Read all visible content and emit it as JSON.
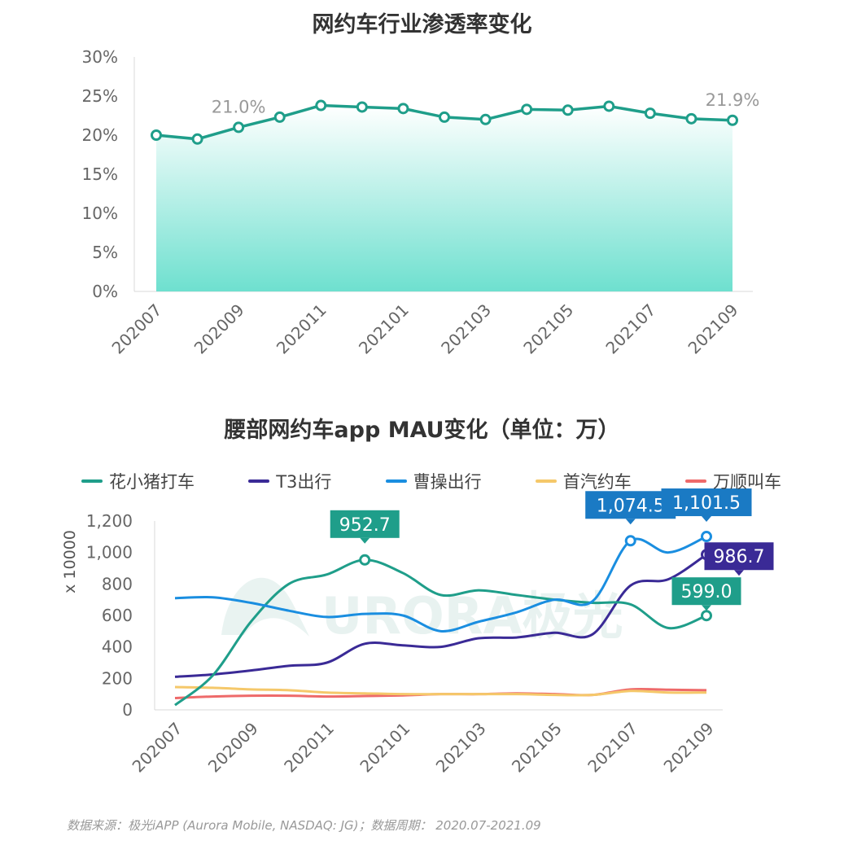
{
  "chart_data": [
    {
      "type": "area",
      "title": "网约车行业渗透率变化",
      "y_ticks": [
        "30%",
        "25%",
        "20%",
        "15%",
        "10%",
        "5%",
        "0%"
      ],
      "ylim": [
        0,
        30
      ],
      "x": [
        "202007",
        "202008",
        "202009",
        "202010",
        "202011",
        "202012",
        "202101",
        "202102",
        "202103",
        "202104",
        "202105",
        "202106",
        "202107",
        "202108",
        "202109"
      ],
      "x_tick_labels": [
        "202007",
        "202009",
        "202011",
        "202101",
        "202103",
        "202105",
        "202107",
        "202109"
      ],
      "series": [
        {
          "name": "",
          "values": [
            20.0,
            19.5,
            21.0,
            22.3,
            23.8,
            23.6,
            23.4,
            22.3,
            22.0,
            23.3,
            23.2,
            23.7,
            22.8,
            22.1,
            21.9
          ]
        }
      ],
      "annotations": [
        {
          "text": "21.0%",
          "x": "202009"
        },
        {
          "text": "21.9%",
          "x": "202109"
        }
      ],
      "colors": {
        "line": "#1f9e8a",
        "fill_top": "#ffffff",
        "fill_bottom": "#6ee0cf"
      }
    },
    {
      "type": "line",
      "title": "腰部网约车app MAU变化（单位：万）",
      "ylabel": "x 10000",
      "y_ticks": [
        "1,200",
        "1,000",
        "800",
        "600",
        "400",
        "200",
        "0"
      ],
      "ylim": [
        0,
        1200
      ],
      "x": [
        "202007",
        "202008",
        "202009",
        "202010",
        "202011",
        "202012",
        "202101",
        "202102",
        "202103",
        "202104",
        "202105",
        "202106",
        "202107",
        "202108",
        "202109"
      ],
      "x_tick_labels": [
        "202007",
        "202009",
        "202011",
        "202101",
        "202103",
        "202105",
        "202107",
        "202109"
      ],
      "series": [
        {
          "name": "花小猪打车",
          "color": "#1f9e8a",
          "values": [
            30,
            220,
            560,
            800,
            860,
            952.7,
            870,
            730,
            760,
            730,
            700,
            680,
            670,
            520,
            599.0
          ]
        },
        {
          "name": "T3出行",
          "color": "#3a2a96",
          "values": [
            210,
            225,
            250,
            280,
            300,
            420,
            410,
            400,
            455,
            460,
            490,
            480,
            790,
            830,
            986.7
          ]
        },
        {
          "name": "曹操出行",
          "color": "#1a8ee0",
          "values": [
            710,
            715,
            680,
            630,
            590,
            610,
            600,
            500,
            560,
            620,
            700,
            690,
            1074.5,
            1000,
            1101.5
          ]
        },
        {
          "name": "首汽约车",
          "color": "#f5c86a",
          "values": [
            145,
            140,
            130,
            125,
            110,
            105,
            100,
            100,
            100,
            100,
            95,
            95,
            120,
            110,
            110
          ]
        },
        {
          "name": "万顺叫车",
          "color": "#ee6a6a",
          "values": [
            75,
            85,
            90,
            90,
            85,
            88,
            92,
            100,
            100,
            105,
            100,
            95,
            130,
            128,
            125
          ]
        }
      ],
      "data_labels": [
        {
          "text": "952.7",
          "series": 0,
          "x": "202012",
          "color": "#1f9e8a"
        },
        {
          "text": "1,074.5",
          "series": 2,
          "x": "202107",
          "color": "#1a7ac4"
        },
        {
          "text": "1,101.5",
          "series": 2,
          "x": "202109",
          "color": "#1a7ac4"
        },
        {
          "text": "986.7",
          "series": 1,
          "x": "202109",
          "color": "#3a2a96"
        },
        {
          "text": "599.0",
          "series": 0,
          "x": "202109",
          "color": "#1f9e8a"
        }
      ]
    }
  ],
  "watermark": {
    "text": "URORA极光"
  },
  "source_text": "数据来源：极光iAPP (Aurora Mobile, NASDAQ: JG)；数据周期：  2020.07-2021.09"
}
